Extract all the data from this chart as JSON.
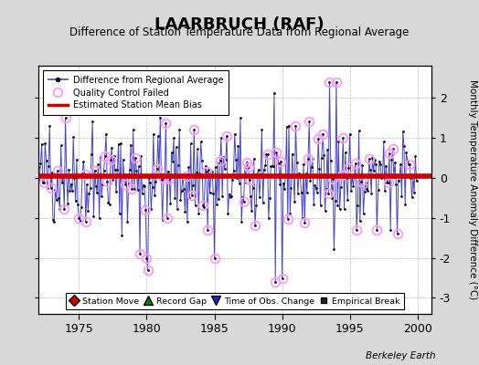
{
  "title": "LAARBRUCH (RAF)",
  "subtitle": "Difference of Station Temperature Data from Regional Average",
  "ylabel": "Monthly Temperature Anomaly Difference (°C)",
  "xlabel_ticks": [
    1975,
    1980,
    1985,
    1990,
    1995,
    2000
  ],
  "ylim": [
    -3.4,
    2.8
  ],
  "yticks": [
    -3,
    -2,
    -1,
    0,
    1,
    2
  ],
  "mean_bias": 0.05,
  "bias_color": "#cc0000",
  "line_color": "#4444cc",
  "dot_color": "#111111",
  "qc_color": "#ff99ff",
  "background_color": "#d8d8d8",
  "plot_bg_color": "#ffffff",
  "berkeley_earth_text": "Berkeley Earth",
  "seed": 42,
  "n_points": 336,
  "start_year": 1972.0
}
